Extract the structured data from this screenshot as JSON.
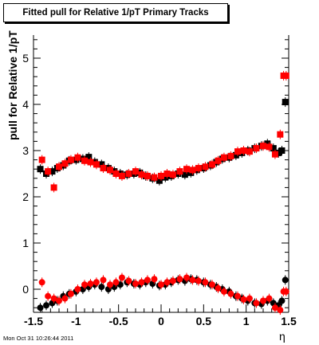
{
  "title": "Fitted pull for Relative 1/pT  Primary Tracks",
  "ylabel": "pull for Relative 1/pT",
  "xlabel": "η",
  "timestamp": "Mon Oct 31 10:26:44 2011",
  "colors": {
    "series_a": "#000000",
    "series_b": "#ff0000"
  },
  "chart_data": {
    "type": "scatter",
    "title": "Fitted pull for Relative 1/pT  Primary Tracks",
    "xlabel": "η",
    "ylabel": "pull for Relative 1/pT",
    "xlim": [
      -1.5,
      1.5
    ],
    "ylim": [
      -0.5,
      5.5
    ],
    "x_ticks": [
      "-1.5",
      "-1",
      "-0.5",
      "0",
      "0.5",
      "1",
      "1.5"
    ],
    "y_ticks": [
      "0",
      "1",
      "2",
      "3",
      "4",
      "5"
    ],
    "grid": false,
    "legend": "none",
    "series": [
      {
        "color": "#000000",
        "x": [
          -1.42,
          -1.35,
          -1.28,
          -1.22,
          -1.15,
          -1.08,
          -1.0,
          -0.92,
          -0.85,
          -0.78,
          -0.7,
          -0.62,
          -0.55,
          -0.48,
          -0.4,
          -0.32,
          -0.25,
          -0.18,
          -0.1,
          -0.02,
          0.05,
          0.12,
          0.2,
          0.28,
          0.35,
          0.42,
          0.5,
          0.58,
          0.65,
          0.72,
          0.8,
          0.88,
          0.95,
          1.02,
          1.1,
          1.18,
          1.25,
          1.32,
          1.38,
          1.42,
          1.46
        ],
        "mean": [
          2.6,
          2.5,
          2.55,
          2.62,
          2.68,
          2.78,
          2.8,
          2.82,
          2.86,
          2.75,
          2.7,
          2.62,
          2.55,
          2.5,
          2.48,
          2.5,
          2.52,
          2.45,
          2.4,
          2.35,
          2.42,
          2.45,
          2.5,
          2.48,
          2.52,
          2.58,
          2.62,
          2.68,
          2.75,
          2.82,
          2.85,
          2.9,
          2.95,
          3.0,
          3.05,
          3.1,
          3.15,
          3.05,
          2.95,
          3.0,
          4.05
        ],
        "sigma": [
          -0.4,
          -0.35,
          -0.3,
          -0.25,
          -0.15,
          -0.1,
          -0.05,
          0.0,
          0.05,
          0.1,
          0.05,
          0.0,
          0.05,
          0.1,
          0.15,
          0.12,
          0.1,
          0.15,
          0.12,
          0.08,
          0.1,
          0.15,
          0.2,
          0.18,
          0.22,
          0.2,
          0.15,
          0.1,
          0.05,
          0.0,
          -0.05,
          -0.15,
          -0.2,
          -0.25,
          -0.3,
          -0.32,
          -0.25,
          -0.3,
          -0.35,
          -0.25,
          0.2
        ]
      },
      {
        "color": "#ff0000",
        "x": [
          -1.4,
          -1.33,
          -1.26,
          -1.2,
          -1.13,
          -1.06,
          -0.98,
          -0.9,
          -0.83,
          -0.76,
          -0.68,
          -0.6,
          -0.53,
          -0.46,
          -0.38,
          -0.3,
          -0.23,
          -0.16,
          -0.08,
          0.0,
          0.07,
          0.14,
          0.22,
          0.3,
          0.37,
          0.44,
          0.52,
          0.6,
          0.67,
          0.74,
          0.82,
          0.9,
          0.97,
          1.04,
          1.12,
          1.2,
          1.27,
          1.34,
          1.4,
          1.44,
          1.47
        ],
        "mean": [
          2.8,
          2.55,
          2.2,
          2.65,
          2.72,
          2.8,
          2.85,
          2.78,
          2.75,
          2.7,
          2.62,
          2.58,
          2.5,
          2.45,
          2.5,
          2.55,
          2.48,
          2.45,
          2.42,
          2.45,
          2.5,
          2.48,
          2.55,
          2.6,
          2.58,
          2.62,
          2.65,
          2.7,
          2.78,
          2.85,
          2.88,
          2.98,
          3.0,
          2.98,
          3.05,
          3.1,
          3.08,
          2.92,
          3.35,
          4.62,
          4.62
        ],
        "sigma": [
          0.15,
          -0.15,
          -0.2,
          -0.25,
          -0.2,
          -0.1,
          0.0,
          0.1,
          0.12,
          0.15,
          0.2,
          0.1,
          0.15,
          0.25,
          0.18,
          0.12,
          0.15,
          0.2,
          0.22,
          0.1,
          0.15,
          0.18,
          0.22,
          0.25,
          0.2,
          0.18,
          0.15,
          0.1,
          0.02,
          -0.05,
          -0.1,
          -0.15,
          -0.22,
          -0.2,
          -0.3,
          -0.25,
          -0.2,
          -0.4,
          -0.45,
          -0.05,
          -0.05
        ]
      }
    ]
  }
}
